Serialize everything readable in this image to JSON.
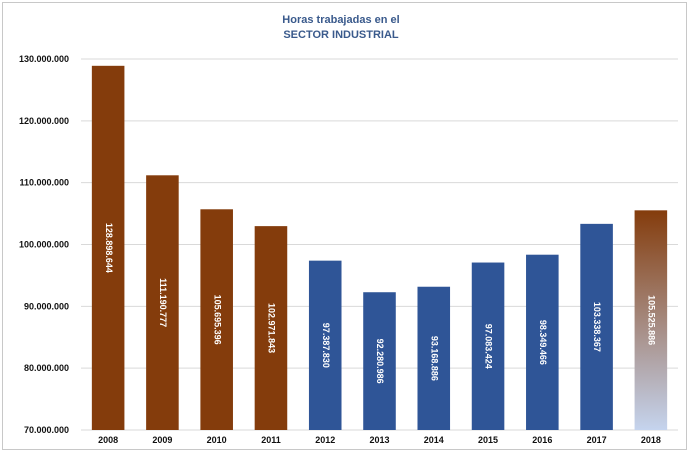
{
  "chart_data": {
    "type": "bar",
    "title_lines": [
      "Horas trabajadas en el",
      "SECTOR INDUSTRIAL"
    ],
    "categories": [
      "2008",
      "2009",
      "2010",
      "2011",
      "2012",
      "2013",
      "2014",
      "2015",
      "2016",
      "2017",
      "2018"
    ],
    "values": [
      128898644,
      111190777,
      105695396,
      102971843,
      97387830,
      92280986,
      93168886,
      97083424,
      98349466,
      103338367,
      105525886
    ],
    "value_labels": [
      "128.898.644",
      "111.190.777",
      "105.695.396",
      "102.971.843",
      "97.387.830",
      "92.280.986",
      "93.168.886",
      "97.083.424",
      "98.349.466",
      "103.338.367",
      "105.525.886"
    ],
    "ylim": [
      70000000,
      130000000
    ],
    "yticks": [
      70000000,
      80000000,
      90000000,
      100000000,
      110000000,
      120000000,
      130000000
    ],
    "ytick_labels": [
      "70.000.000",
      "80.000.000",
      "90.000.000",
      "100.000.000",
      "110.000.000",
      "120.000.000",
      "130.000.000"
    ],
    "grid": true,
    "colors": {
      "brown": "#843c0c",
      "blue": "#2f5597",
      "gradient_top": "#843c0c",
      "gradient_bottom": "#c5d4ee",
      "grid": "#d9d9d9",
      "title": "#3a5a8c"
    },
    "bar_color_keys": [
      "brown",
      "brown",
      "brown",
      "brown",
      "blue",
      "blue",
      "blue",
      "blue",
      "blue",
      "blue",
      "gradient"
    ]
  }
}
